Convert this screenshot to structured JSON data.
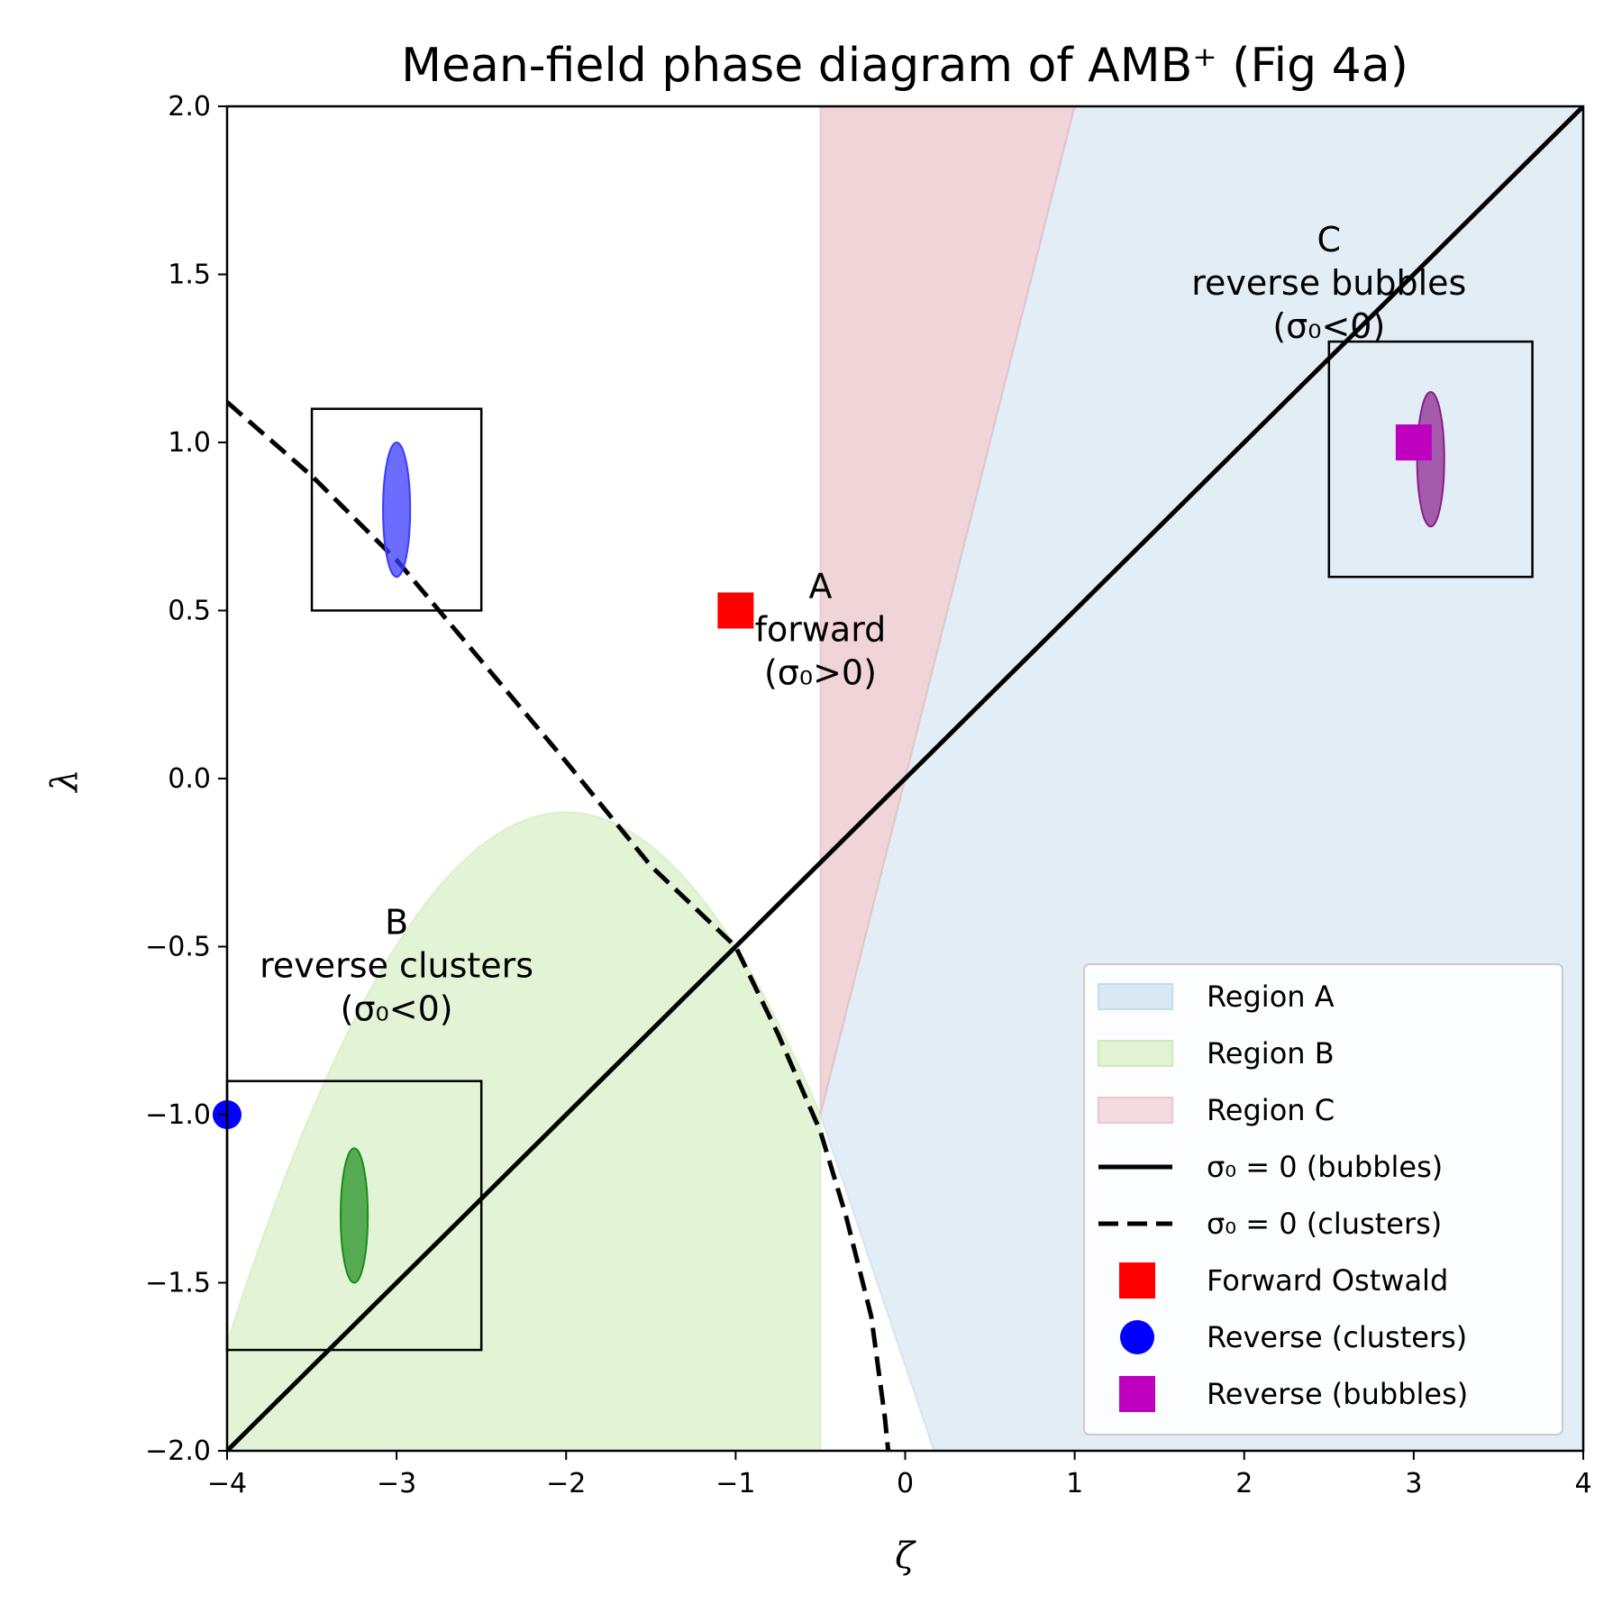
{
  "chart_data": {
    "type": "area",
    "title": "Mean-field phase diagram of AMB⁺ (Fig 4a)",
    "xlabel": "ζ",
    "ylabel": "λ",
    "xlim": [
      -4,
      4
    ],
    "ylim": [
      -2,
      2
    ],
    "xticks": [
      -4,
      -3,
      -2,
      -1,
      0,
      1,
      2,
      3,
      4
    ],
    "xtick_labels": [
      "−4",
      "−3",
      "−2",
      "−1",
      "0",
      "1",
      "2",
      "3",
      "4"
    ],
    "yticks": [
      -2.0,
      -1.5,
      -1.0,
      -0.5,
      0.0,
      0.5,
      1.0,
      1.5,
      2.0
    ],
    "ytick_labels": [
      "−2.0",
      "−1.5",
      "−1.0",
      "−0.5",
      "0.0",
      "0.5",
      "1.0",
      "1.5",
      "2.0"
    ],
    "grid": false,
    "legend_position": "lower-right",
    "regions": [
      {
        "name": "Region A",
        "color": "#c5dcec",
        "alpha": 0.5,
        "polygon": [
          [
            -0.5,
            -1.0
          ],
          [
            1.0,
            2.0
          ],
          [
            4.0,
            2.0
          ],
          [
            4.0,
            -2.0
          ],
          [
            0.17,
            -2.0
          ]
        ]
      },
      {
        "name": "Region B",
        "color": "#d0ebb9",
        "alpha": 0.6,
        "curve": "parabola",
        "x_range": [
          -4.0,
          -0.5
        ],
        "vertex": [
          -2.0,
          -0.1
        ],
        "end_values": [
          -1.68,
          -1.0
        ],
        "floor": -2.0
      },
      {
        "name": "Region C",
        "color": "#e6b8be",
        "alpha": 0.6,
        "polygon": [
          [
            -0.5,
            -1.0
          ],
          [
            -0.5,
            2.0
          ],
          [
            1.0,
            2.0
          ]
        ]
      }
    ],
    "lines": [
      {
        "name": "σ₀ = 0 (bubbles)",
        "style": "solid",
        "points": [
          [
            -4,
            -2
          ],
          [
            4,
            2
          ]
        ]
      },
      {
        "name": "σ₀ = 0 (clusters)",
        "style": "dashed",
        "points": [
          [
            -4.0,
            1.12
          ],
          [
            -3.5,
            0.9
          ],
          [
            -3.0,
            0.65
          ],
          [
            -2.5,
            0.35
          ],
          [
            -2.0,
            0.05
          ],
          [
            -1.5,
            -0.26
          ],
          [
            -1.0,
            -0.5
          ],
          [
            -0.75,
            -0.76
          ],
          [
            -0.5,
            -1.05
          ],
          [
            -0.35,
            -1.3
          ],
          [
            -0.2,
            -1.6
          ],
          [
            -0.12,
            -1.9
          ],
          [
            -0.1,
            -2.0
          ]
        ]
      }
    ],
    "scatter": [
      {
        "name": "Forward Ostwald",
        "marker": "square",
        "color": "#ff0000",
        "points": [
          [
            -1.0,
            0.5
          ]
        ]
      },
      {
        "name": "Reverse (clusters)",
        "marker": "circle",
        "color": "#0000ff",
        "points": [
          [
            -4.0,
            -1.0
          ]
        ]
      },
      {
        "name": "Reverse (bubbles)",
        "marker": "square",
        "color": "#bf00bf",
        "points": [
          [
            3.0,
            1.0
          ]
        ]
      }
    ],
    "ellipses": [
      {
        "center": [
          -3.0,
          0.8
        ],
        "width": 0.4,
        "height": 0.4,
        "color": "#3b3bff",
        "alpha": 0.75
      },
      {
        "center": [
          -3.25,
          -1.3
        ],
        "width": 0.4,
        "height": 0.4,
        "color": "#1a8c1a",
        "alpha": 0.7
      },
      {
        "center": [
          3.1,
          0.95
        ],
        "width": 0.4,
        "height": 0.4,
        "color": "#8b1c8b",
        "alpha": 0.7
      }
    ],
    "boxes": [
      {
        "x": [
          -3.5,
          -2.5
        ],
        "y": [
          0.5,
          1.1
        ]
      },
      {
        "x": [
          -4.0,
          -2.5
        ],
        "y": [
          -1.7,
          -0.9
        ]
      },
      {
        "x": [
          2.5,
          3.7
        ],
        "y": [
          0.6,
          1.3
        ]
      }
    ],
    "annotations": [
      {
        "lines": [
          "A",
          "forward",
          "(σ₀>0)"
        ],
        "at": [
          -0.5,
          0.27
        ]
      },
      {
        "lines": [
          "B",
          "reverse clusters",
          "(σ₀<0)"
        ],
        "at": [
          -3.0,
          -0.73
        ]
      },
      {
        "lines": [
          "C",
          "reverse bubbles",
          "(σ₀<0)"
        ],
        "at": [
          2.5,
          1.3
        ]
      }
    ],
    "legend": [
      {
        "label": "Region A",
        "kind": "patch",
        "color": "#c5dcec"
      },
      {
        "label": "Region B",
        "kind": "patch",
        "color": "#d0ebb9"
      },
      {
        "label": "Region C",
        "kind": "patch",
        "color": "#eec6cb"
      },
      {
        "label": "σ₀ = 0 (bubbles)",
        "kind": "line-solid",
        "color": "#000000"
      },
      {
        "label": "σ₀ = 0 (clusters)",
        "kind": "line-dashed",
        "color": "#000000"
      },
      {
        "label": "Forward Ostwald",
        "kind": "square",
        "color": "#ff0000"
      },
      {
        "label": "Reverse (clusters)",
        "kind": "circle",
        "color": "#0000ff"
      },
      {
        "label": "Reverse (bubbles)",
        "kind": "square",
        "color": "#bf00bf"
      }
    ]
  }
}
